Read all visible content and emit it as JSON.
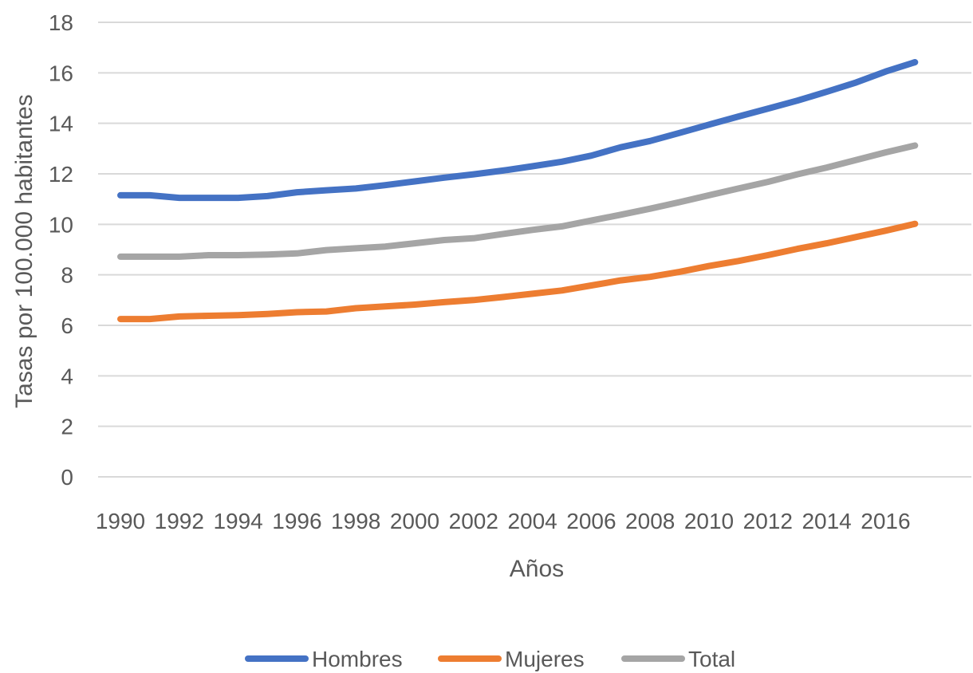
{
  "chart_data": {
    "type": "line",
    "title": "",
    "xlabel": "Años",
    "ylabel": "Tasas por 100.000 habitantes",
    "x": [
      1990,
      1991,
      1992,
      1993,
      1994,
      1995,
      1996,
      1997,
      1998,
      1999,
      2000,
      2001,
      2002,
      2003,
      2004,
      2005,
      2006,
      2007,
      2008,
      2009,
      2010,
      2011,
      2012,
      2013,
      2014,
      2015,
      2016,
      2017
    ],
    "x_tick_labels": [
      "1990",
      "1992",
      "1994",
      "1996",
      "1998",
      "2000",
      "2002",
      "2004",
      "2006",
      "2008",
      "2010",
      "2012",
      "2014",
      "2016"
    ],
    "y_ticks": [
      0,
      2,
      4,
      6,
      8,
      10,
      12,
      14,
      16,
      18
    ],
    "ylim": [
      0,
      18
    ],
    "grid": true,
    "legend_position": "bottom",
    "series": [
      {
        "name": "Hombres",
        "color": "#4472C4",
        "values": [
          11.15,
          11.15,
          11.05,
          11.05,
          11.05,
          11.12,
          11.27,
          11.35,
          11.42,
          11.55,
          11.7,
          11.85,
          11.98,
          12.13,
          12.3,
          12.48,
          12.72,
          13.05,
          13.3,
          13.62,
          13.95,
          14.27,
          14.58,
          14.9,
          15.25,
          15.62,
          16.05,
          16.42
        ]
      },
      {
        "name": "Mujeres",
        "color": "#ED7D31",
        "values": [
          6.25,
          6.25,
          6.35,
          6.38,
          6.4,
          6.45,
          6.52,
          6.55,
          6.68,
          6.75,
          6.82,
          6.92,
          7.0,
          7.12,
          7.25,
          7.38,
          7.58,
          7.78,
          7.92,
          8.12,
          8.35,
          8.55,
          8.78,
          9.03,
          9.25,
          9.5,
          9.75,
          10.02
        ]
      },
      {
        "name": "Total",
        "color": "#A5A5A5",
        "values": [
          8.72,
          8.72,
          8.72,
          8.78,
          8.78,
          8.8,
          8.85,
          8.98,
          9.05,
          9.12,
          9.25,
          9.38,
          9.45,
          9.62,
          9.78,
          9.92,
          10.15,
          10.38,
          10.62,
          10.88,
          11.15,
          11.42,
          11.68,
          11.98,
          12.25,
          12.55,
          12.85,
          13.12
        ]
      }
    ]
  }
}
